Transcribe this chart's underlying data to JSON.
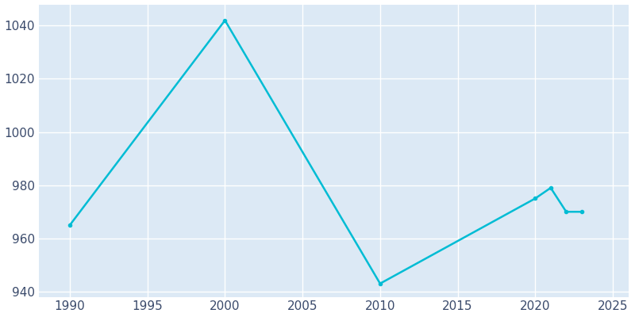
{
  "years": [
    1990,
    2000,
    2010,
    2020,
    2021,
    2022,
    2023
  ],
  "population": [
    965,
    1042,
    943,
    975,
    979,
    970,
    970
  ],
  "line_color": "#00bcd4",
  "plot_bg_color": "#dce9f5",
  "fig_bg_color": "#ffffff",
  "grid_color": "#ffffff",
  "tick_color": "#3a4a6b",
  "xlim": [
    1988,
    2026
  ],
  "ylim": [
    938,
    1048
  ],
  "xticks": [
    1990,
    1995,
    2000,
    2005,
    2010,
    2015,
    2020,
    2025
  ],
  "yticks": [
    940,
    960,
    980,
    1000,
    1020,
    1040
  ],
  "line_width": 1.8,
  "marker": "o",
  "marker_size": 3,
  "tick_labelsize": 11
}
